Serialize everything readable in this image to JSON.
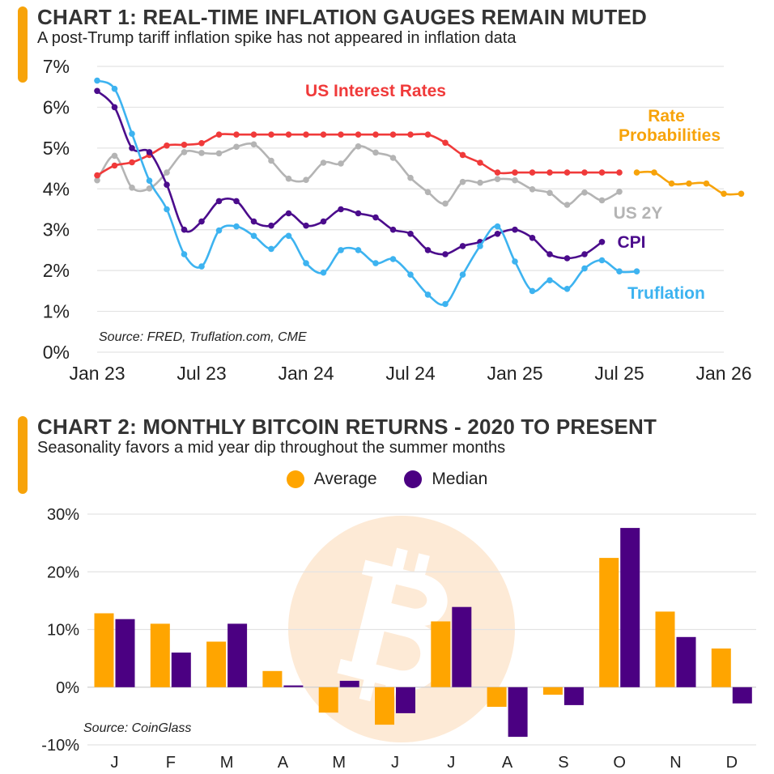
{
  "chart1": {
    "title": "CHART 1: REAL-TIME INFLATION GAUGES REMAIN MUTED",
    "subtitle": "A post-Trump tariff inflation spike has not appeared in inflation data",
    "source": "Source: FRED, Truflation.com, CME"
  },
  "chart2": {
    "title": "CHART 2: MONTHLY BITCOIN RETURNS - 2020 TO PRESENT",
    "subtitle": "Seasonality favors a mid year dip throughout the summer months",
    "source": "Source: CoinGlass",
    "watermark_icon": "bitcoin-icon"
  },
  "colors": {
    "accent": "#F7A30A",
    "interest": "#F03A3A",
    "probabilities": "#F7A30A",
    "us2y": "#B4B4B4",
    "cpi": "#4B0C8C",
    "truflation": "#3DB3F0",
    "average": "#FFA500",
    "median": "#4B0082"
  },
  "chart_data": [
    {
      "type": "line",
      "x_ticks": [
        "Jan 23",
        "Jul 23",
        "Jan 24",
        "Jul 24",
        "Jan 25",
        "Jul 25",
        "Jan 26"
      ],
      "y_ticks": [
        "0%",
        "1%",
        "2%",
        "3%",
        "4%",
        "5%",
        "6%",
        "7%"
      ],
      "xlim": [
        "2023-01",
        "2026-01"
      ],
      "ylim": [
        0,
        7
      ],
      "grid": true,
      "series": [
        {
          "name": "US Interest Rates",
          "color": "#F03A3A",
          "start": "2023-01",
          "values": [
            4.33,
            4.57,
            4.65,
            4.83,
            5.06,
            5.08,
            5.12,
            5.33,
            5.33,
            5.33,
            5.33,
            5.33,
            5.33,
            5.33,
            5.33,
            5.33,
            5.33,
            5.33,
            5.33,
            5.33,
            5.13,
            4.83,
            4.64,
            4.4,
            4.4,
            4.4,
            4.4,
            4.4,
            4.4,
            4.4,
            4.4
          ]
        },
        {
          "name": "Rate Probabilities",
          "color": "#F7A30A",
          "start": "2025-08",
          "values": [
            4.4,
            4.4,
            4.13,
            4.13,
            4.13,
            3.88,
            3.88
          ]
        },
        {
          "name": "US 2Y",
          "color": "#B4B4B4",
          "start": "2023-01",
          "values": [
            4.21,
            4.81,
            4.03,
            4.01,
            4.4,
            4.9,
            4.88,
            4.87,
            5.03,
            5.09,
            4.69,
            4.25,
            4.22,
            4.64,
            4.62,
            5.04,
            4.89,
            4.76,
            4.27,
            3.92,
            3.64,
            4.17,
            4.15,
            4.24,
            4.21,
            3.99,
            3.9,
            3.61,
            3.91,
            3.72,
            3.93
          ]
        },
        {
          "name": "CPI",
          "color": "#4B0C8C",
          "start": "2023-01",
          "values": [
            6.4,
            6.0,
            5.0,
            4.9,
            4.1,
            3.0,
            3.2,
            3.7,
            3.7,
            3.2,
            3.1,
            3.4,
            3.1,
            3.2,
            3.5,
            3.4,
            3.3,
            3.0,
            2.9,
            2.5,
            2.4,
            2.6,
            2.7,
            2.9,
            3.0,
            2.8,
            2.4,
            2.3,
            2.4,
            2.7
          ]
        },
        {
          "name": "Truflation",
          "color": "#3DB3F0",
          "start": "2023-01",
          "values": [
            6.65,
            6.45,
            5.35,
            4.2,
            3.5,
            2.4,
            2.1,
            2.98,
            3.08,
            2.85,
            2.53,
            2.85,
            2.18,
            1.95,
            2.5,
            2.5,
            2.18,
            2.28,
            1.9,
            1.41,
            1.18,
            1.9,
            2.6,
            3.08,
            2.22,
            1.5,
            1.76,
            1.55,
            2.05,
            2.25,
            1.98,
            1.98
          ]
        }
      ]
    },
    {
      "type": "bar",
      "categories": [
        "J",
        "F",
        "M",
        "A",
        "M",
        "J",
        "J",
        "A",
        "S",
        "O",
        "N",
        "D"
      ],
      "ylim": [
        -10,
        30
      ],
      "y_ticks": [
        "-10%",
        "0%",
        "10%",
        "20%",
        "30%"
      ],
      "grid": true,
      "legend_placement": "top-center",
      "series": [
        {
          "name": "Average",
          "color": "#FFA500",
          "values": [
            12.8,
            11.0,
            7.9,
            2.8,
            -4.4,
            -6.5,
            11.4,
            -3.4,
            -1.3,
            22.4,
            13.1,
            6.7
          ]
        },
        {
          "name": "Median",
          "color": "#4B0082",
          "values": [
            11.8,
            6.0,
            11.0,
            0.3,
            1.1,
            -4.5,
            13.9,
            -8.6,
            -3.1,
            27.6,
            8.7,
            -2.8
          ]
        }
      ]
    }
  ]
}
